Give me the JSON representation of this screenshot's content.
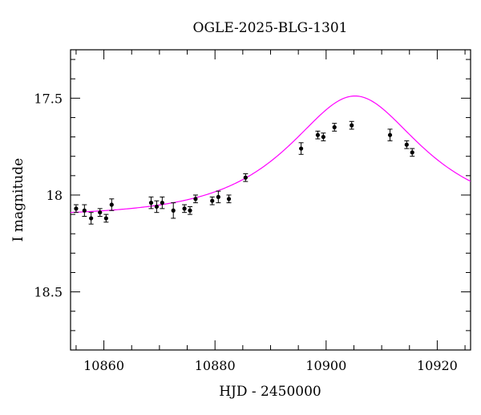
{
  "chart_data": {
    "type": "scatter",
    "title": "OGLE-2025-BLG-1301",
    "xlabel": "HJD - 2450000",
    "ylabel": "I magnitude",
    "xlim": [
      10854,
      10926
    ],
    "ylim": [
      18.8,
      17.25
    ],
    "y_inverted": true,
    "xticks_major": [
      10860,
      10880,
      10900,
      10920
    ],
    "xtick_labels": [
      "10860",
      "10880",
      "10900",
      "10920"
    ],
    "yticks_major": [
      17.5,
      18,
      18.5
    ],
    "ytick_labels": [
      "17.5",
      "18",
      "18.5"
    ],
    "grid": false,
    "legend": "none",
    "colors": {
      "data": "#000000",
      "model": "#ff00ff"
    },
    "series": [
      {
        "type": "scatter",
        "x": [
          10855.0,
          10856.5,
          10857.7,
          10859.3,
          10860.4,
          10861.4,
          10868.5,
          10869.5,
          10870.5,
          10872.5,
          10874.5,
          10875.5,
          10876.5,
          10879.5,
          10880.6,
          10882.5,
          10885.5,
          10895.5,
          10898.5,
          10899.5,
          10901.5,
          10904.6,
          10911.5,
          10914.5,
          10915.5
        ],
        "y": [
          18.07,
          18.08,
          18.12,
          18.09,
          18.12,
          18.05,
          18.04,
          18.06,
          18.04,
          18.08,
          18.07,
          18.08,
          18.02,
          18.03,
          18.01,
          18.02,
          17.91,
          17.76,
          17.69,
          17.7,
          17.65,
          17.64,
          17.69,
          17.74,
          17.78
        ],
        "yerr": [
          0.02,
          0.03,
          0.03,
          0.02,
          0.02,
          0.03,
          0.03,
          0.03,
          0.03,
          0.04,
          0.02,
          0.02,
          0.02,
          0.02,
          0.03,
          0.02,
          0.02,
          0.03,
          0.02,
          0.02,
          0.02,
          0.02,
          0.03,
          0.02,
          0.02
        ]
      },
      {
        "type": "line",
        "model": "microlensing-pspl",
        "t0": 10905.2,
        "tE": 18.0,
        "u0": 0.65,
        "baseline_mag": 18.11
      }
    ]
  }
}
